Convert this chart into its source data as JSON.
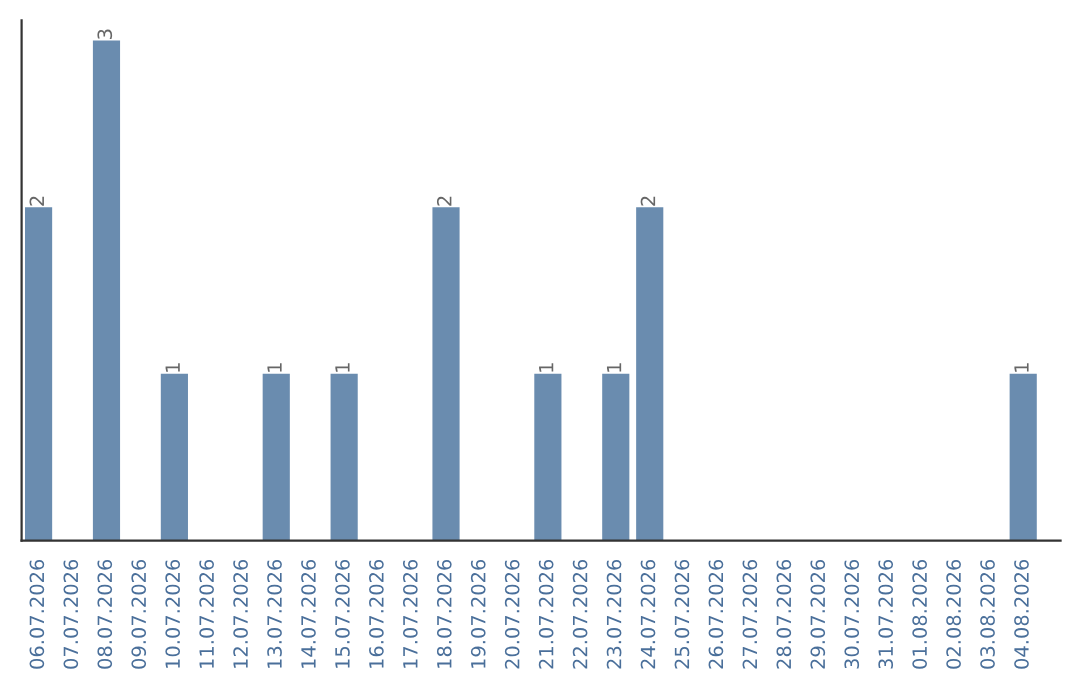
{
  "chart_data": {
    "type": "bar",
    "categories": [
      "06.07.2026",
      "07.07.2026",
      "08.07.2026",
      "09.07.2026",
      "10.07.2026",
      "11.07.2026",
      "12.07.2026",
      "13.07.2026",
      "14.07.2026",
      "15.07.2026",
      "16.07.2026",
      "17.07.2026",
      "18.07.2026",
      "19.07.2026",
      "20.07.2026",
      "21.07.2026",
      "22.07.2026",
      "23.07.2026",
      "24.07.2026",
      "25.07.2026",
      "26.07.2026",
      "27.07.2026",
      "28.07.2026",
      "29.07.2026",
      "30.07.2026",
      "31.07.2026",
      "01.08.2026",
      "02.08.2026",
      "03.08.2026",
      "04.08.2026"
    ],
    "values": [
      2,
      0,
      3,
      0,
      1,
      0,
      0,
      1,
      0,
      1,
      0,
      0,
      2,
      0,
      0,
      1,
      0,
      1,
      2,
      0,
      0,
      0,
      0,
      0,
      0,
      0,
      0,
      0,
      0,
      1
    ],
    "value_labels": [
      "2",
      null,
      "3",
      null,
      "1",
      null,
      null,
      "1",
      null,
      "1",
      null,
      null,
      "2",
      null,
      null,
      "1",
      null,
      "1",
      "2",
      null,
      null,
      null,
      null,
      null,
      null,
      null,
      null,
      null,
      null,
      "1"
    ],
    "color": "#6a8caf",
    "tick_labels": "x",
    "grid": false,
    "legend": false
  }
}
